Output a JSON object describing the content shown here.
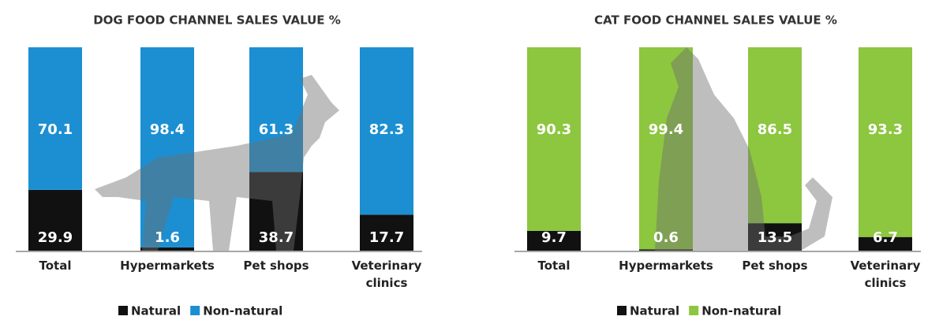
{
  "chart_data": [
    {
      "type": "stacked-bar",
      "title": "DOG FOOD CHANNEL SALES VALUE %",
      "categories": [
        "Total",
        "Hypermarkets",
        "Pet shops",
        "Veterinary clinics"
      ],
      "series": [
        {
          "name": "Natural",
          "color": "#111111",
          "values": [
            29.9,
            1.6,
            38.7,
            17.7
          ]
        },
        {
          "name": "Non-natural",
          "color": "#1b8fd2",
          "values": [
            70.1,
            98.4,
            61.3,
            82.3
          ]
        }
      ],
      "ylim": [
        0,
        100
      ]
    },
    {
      "type": "stacked-bar",
      "title": "CAT FOOD CHANNEL SALES VALUE %",
      "categories": [
        "Total",
        "Hypermarkets",
        "Pet shops",
        "Veterinary clinics"
      ],
      "series": [
        {
          "name": "Natural",
          "color": "#111111",
          "values": [
            9.7,
            0.6,
            13.5,
            6.7
          ]
        },
        {
          "name": "Non-natural",
          "color": "#8dc63f",
          "values": [
            90.3,
            99.4,
            86.5,
            93.3
          ]
        }
      ],
      "ylim": [
        0,
        100
      ]
    }
  ]
}
